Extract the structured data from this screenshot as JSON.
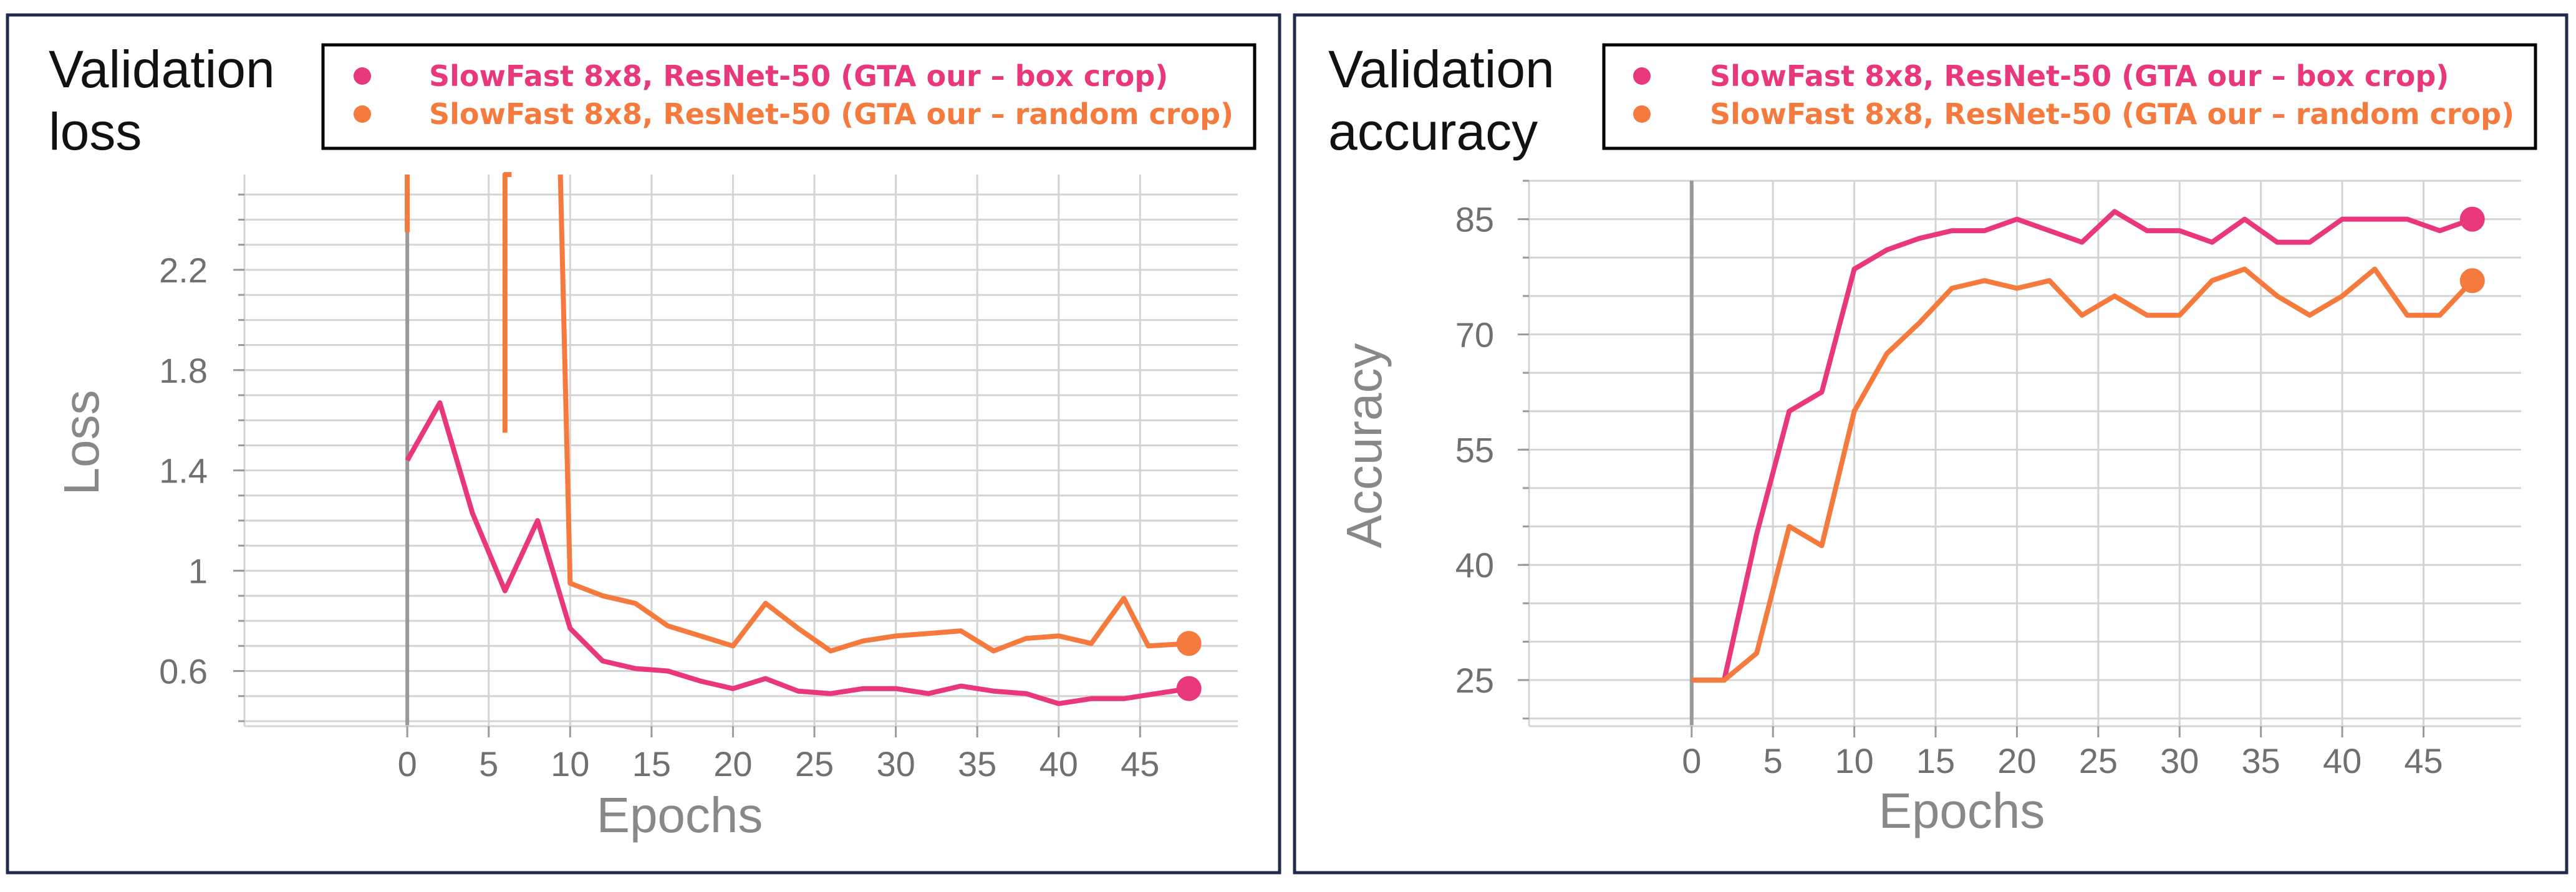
{
  "colors": {
    "box": "#e8377a",
    "random": "#f47a3d",
    "frame": "#1f2d4d",
    "grid": "#d4d4d4",
    "axis": "#9a9a9a",
    "tick": "#707070"
  },
  "chart_data": [
    {
      "type": "line",
      "title": "Validation loss",
      "xlabel": "Epochs",
      "ylabel": "Loss",
      "xlim": [
        -10,
        51
      ],
      "ylim": [
        0.38,
        2.58
      ],
      "xticks": [
        0,
        5,
        10,
        15,
        20,
        25,
        30,
        35,
        40,
        45
      ],
      "yticks": [
        0.6,
        1,
        1.4,
        1.8,
        2.2
      ],
      "ytick_labels": [
        "0.6",
        "1",
        "1.4",
        "1.8",
        "2.2"
      ],
      "legend": "top",
      "series": [
        {
          "name": "SlowFast 8x8, ResNet-50 (GTA our – box crop)",
          "color": "#e8377a",
          "x": [
            0,
            2,
            4,
            6,
            8,
            10,
            12,
            14,
            16,
            18,
            20,
            22,
            24,
            26,
            28,
            30,
            32,
            34,
            36,
            38,
            40,
            42,
            44,
            46,
            48
          ],
          "y": [
            1.44,
            1.67,
            1.23,
            0.92,
            1.2,
            0.77,
            0.64,
            0.61,
            0.6,
            0.56,
            0.53,
            0.57,
            0.52,
            0.51,
            0.53,
            0.53,
            0.51,
            0.54,
            0.52,
            0.51,
            0.47,
            0.49,
            0.49,
            0.51,
            0.53
          ]
        },
        {
          "name": "SlowFast 8x8, ResNet-50 (GTA our – random crop)",
          "color": "#f47a3d",
          "x": [
            0,
            0,
            null,
            6,
            6,
            6.4,
            null,
            9.4,
            10,
            12,
            14,
            16,
            18,
            20,
            22,
            24,
            26,
            28,
            30,
            32,
            34,
            36,
            38,
            40,
            42,
            44,
            45.5,
            48
          ],
          "y": [
            2.58,
            2.35,
            null,
            1.55,
            2.58,
            2.58,
            null,
            2.58,
            0.95,
            0.9,
            0.87,
            0.78,
            0.74,
            0.7,
            0.87,
            0.77,
            0.68,
            0.72,
            0.74,
            0.75,
            0.76,
            0.68,
            0.73,
            0.74,
            0.71,
            0.89,
            0.7,
            0.71
          ]
        }
      ]
    },
    {
      "type": "line",
      "title": "Validation accuracy",
      "xlabel": "Epochs",
      "ylabel": "Accuracy",
      "xlim": [
        -10,
        51
      ],
      "ylim": [
        19,
        90
      ],
      "xticks": [
        0,
        5,
        10,
        15,
        20,
        25,
        30,
        35,
        40,
        45
      ],
      "yticks": [
        25,
        40,
        55,
        70,
        85
      ],
      "ytick_labels": [
        "25",
        "40",
        "55",
        "70",
        "85"
      ],
      "legend": "top",
      "series": [
        {
          "name": "SlowFast 8x8, ResNet-50 (GTA our – box crop)",
          "color": "#e8377a",
          "x": [
            0,
            2,
            4,
            6,
            8,
            10,
            12,
            14,
            16,
            18,
            20,
            22,
            24,
            26,
            28,
            30,
            32,
            34,
            36,
            38,
            40,
            42,
            44,
            46,
            48
          ],
          "y": [
            25,
            25,
            44,
            60,
            62.5,
            78.5,
            81,
            82.5,
            83.5,
            83.5,
            85,
            83.5,
            82,
            86,
            83.5,
            83.5,
            82,
            85,
            82,
            82,
            85,
            85,
            85,
            83.5,
            85
          ]
        },
        {
          "name": "SlowFast 8x8, ResNet-50 (GTA our – random crop)",
          "color": "#f47a3d",
          "x": [
            0,
            2,
            4,
            6,
            8,
            10,
            12,
            14,
            16,
            18,
            20,
            22,
            24,
            26,
            28,
            30,
            32,
            34,
            36,
            38,
            40,
            42,
            44,
            46,
            48
          ],
          "y": [
            25,
            25,
            28.5,
            45,
            42.5,
            60,
            67.5,
            71.5,
            76,
            77,
            76,
            77,
            72.5,
            75,
            72.5,
            72.5,
            77,
            78.5,
            75,
            72.5,
            75,
            78.5,
            72.5,
            72.5,
            77
          ]
        }
      ]
    }
  ]
}
